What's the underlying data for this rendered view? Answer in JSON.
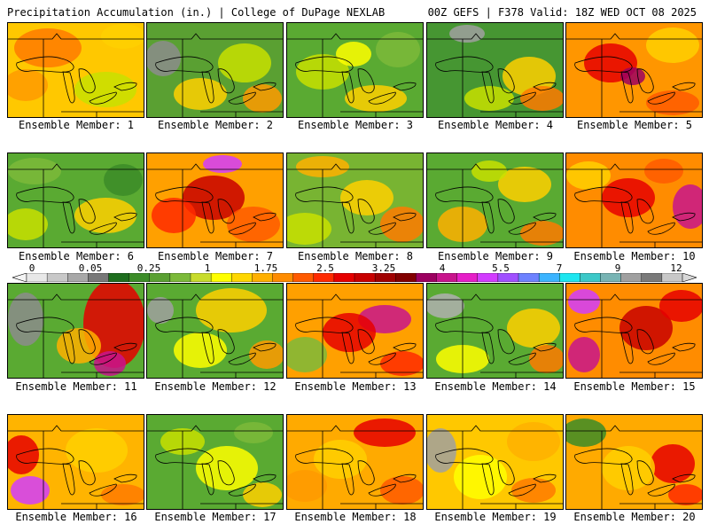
{
  "header": {
    "left": "Precipitation Accumulation (in.) | College of DuPage NEXLAB",
    "right": "00Z GEFS | F378 Valid: 18Z WED OCT 08 2025"
  },
  "colorbar": {
    "labels": [
      "0",
      "0.05",
      "0.25",
      "1",
      "1.75",
      "2.5",
      "3.25",
      "4",
      "5.5",
      "7",
      "9",
      "12"
    ],
    "colors": [
      "#e8e8e8",
      "#c8c8c8",
      "#a8a8a8",
      "#787878",
      "#1e6e1e",
      "#3c8c28",
      "#5aa032",
      "#7cba3a",
      "#c8dc2c",
      "#ffff00",
      "#ffd700",
      "#ffb000",
      "#ff8c00",
      "#ff5a00",
      "#ff2a00",
      "#e60000",
      "#c80000",
      "#a00000",
      "#820000",
      "#9c0060",
      "#c8148c",
      "#e61ec8",
      "#d23cff",
      "#a050ff",
      "#6e82ff",
      "#3cb4ff",
      "#1ee6f0",
      "#3cc8c8",
      "#78b4b4",
      "#a0a0a0",
      "#7a7a7a",
      "#c8c8c8"
    ]
  },
  "members": [
    {
      "label": "Ensemble Member: 1",
      "rgb": [
        255,
        200,
        0
      ],
      "blobs": [
        [
          45,
          28,
          38,
          22,
          "#ff7a00"
        ],
        [
          110,
          75,
          35,
          20,
          "#c8e000"
        ],
        [
          20,
          70,
          25,
          18,
          "#ff9a00"
        ],
        [
          130,
          15,
          25,
          14,
          "#ffd000"
        ]
      ]
    },
    {
      "label": "Ensemble Member: 2",
      "rgb": [
        90,
        160,
        50
      ],
      "blobs": [
        [
          18,
          40,
          20,
          20,
          "#8c8c8c"
        ],
        [
          110,
          45,
          30,
          22,
          "#c8e000"
        ],
        [
          60,
          80,
          30,
          18,
          "#ffd000"
        ],
        [
          130,
          85,
          22,
          16,
          "#ff9a00"
        ]
      ]
    },
    {
      "label": "Ensemble Member: 3",
      "rgb": [
        90,
        170,
        50
      ],
      "blobs": [
        [
          40,
          55,
          30,
          20,
          "#c8e000"
        ],
        [
          100,
          85,
          35,
          15,
          "#ffd000"
        ],
        [
          125,
          30,
          25,
          20,
          "#7cba3a"
        ],
        [
          75,
          35,
          20,
          14,
          "#ffff00"
        ]
      ]
    },
    {
      "label": "Ensemble Member: 4",
      "rgb": [
        70,
        150,
        50
      ],
      "blobs": [
        [
          45,
          12,
          20,
          10,
          "#a0a0a0"
        ],
        [
          115,
          60,
          30,
          22,
          "#ffd000"
        ],
        [
          130,
          85,
          25,
          14,
          "#ff7a00"
        ],
        [
          70,
          85,
          28,
          14,
          "#c8e000"
        ]
      ]
    },
    {
      "label": "Ensemble Member: 5",
      "rgb": [
        255,
        150,
        0
      ],
      "blobs": [
        [
          50,
          45,
          30,
          22,
          "#e60000"
        ],
        [
          75,
          60,
          14,
          10,
          "#9c0060"
        ],
        [
          120,
          25,
          30,
          20,
          "#ffd000"
        ],
        [
          120,
          90,
          30,
          14,
          "#ff5a00"
        ]
      ]
    },
    {
      "label": "Ensemble Member: 6",
      "rgb": [
        90,
        170,
        50
      ],
      "blobs": [
        [
          30,
          20,
          30,
          15,
          "#7cba3a"
        ],
        [
          110,
          70,
          35,
          20,
          "#ffd000"
        ],
        [
          20,
          80,
          25,
          18,
          "#c8e000"
        ],
        [
          130,
          30,
          22,
          18,
          "#3c8c28"
        ]
      ]
    },
    {
      "label": "Ensemble Member: 7",
      "rgb": [
        255,
        160,
        0
      ],
      "blobs": [
        [
          85,
          12,
          22,
          10,
          "#d23cff"
        ],
        [
          75,
          50,
          35,
          25,
          "#c80000"
        ],
        [
          30,
          70,
          25,
          20,
          "#ff2a00"
        ],
        [
          120,
          80,
          30,
          20,
          "#ff5a00"
        ]
      ]
    },
    {
      "label": "Ensemble Member: 8",
      "rgb": [
        120,
        180,
        50
      ],
      "blobs": [
        [
          40,
          15,
          30,
          12,
          "#ffb000"
        ],
        [
          90,
          50,
          30,
          20,
          "#ffd000"
        ],
        [
          130,
          80,
          25,
          20,
          "#ff7a00"
        ],
        [
          20,
          85,
          30,
          18,
          "#c8e000"
        ]
      ]
    },
    {
      "label": "Ensemble Member: 9",
      "rgb": [
        90,
        170,
        50
      ],
      "blobs": [
        [
          110,
          35,
          30,
          20,
          "#ffd000"
        ],
        [
          40,
          80,
          28,
          20,
          "#ffb000"
        ],
        [
          130,
          90,
          25,
          14,
          "#ff7a00"
        ],
        [
          70,
          20,
          20,
          12,
          "#c8e000"
        ]
      ]
    },
    {
      "label": "Ensemble Member: 10",
      "rgb": [
        255,
        140,
        0
      ],
      "blobs": [
        [
          140,
          60,
          20,
          25,
          "#c8148c"
        ],
        [
          70,
          50,
          30,
          22,
          "#e60000"
        ],
        [
          25,
          25,
          25,
          16,
          "#ffd000"
        ],
        [
          110,
          20,
          22,
          14,
          "#ff5a00"
        ]
      ]
    },
    {
      "label": "Ensemble Member: 11",
      "rgb": [
        90,
        170,
        50
      ],
      "blobs": [
        [
          20,
          40,
          20,
          30,
          "#8c8c8c"
        ],
        [
          120,
          45,
          35,
          50,
          "#e60000"
        ],
        [
          115,
          90,
          18,
          14,
          "#c8148c"
        ],
        [
          80,
          70,
          25,
          20,
          "#ffb000"
        ]
      ]
    },
    {
      "label": "Ensemble Member: 12",
      "rgb": [
        90,
        170,
        50
      ],
      "blobs": [
        [
          95,
          30,
          40,
          25,
          "#ffd000"
        ],
        [
          60,
          75,
          30,
          20,
          "#ffff00"
        ],
        [
          15,
          30,
          15,
          15,
          "#a0a0a0"
        ],
        [
          135,
          80,
          20,
          16,
          "#ff9a00"
        ]
      ]
    },
    {
      "label": "Ensemble Member: 13",
      "rgb": [
        255,
        160,
        0
      ],
      "blobs": [
        [
          110,
          40,
          30,
          16,
          "#c8148c"
        ],
        [
          70,
          55,
          30,
          22,
          "#e60000"
        ],
        [
          20,
          80,
          25,
          20,
          "#7cba3a"
        ],
        [
          130,
          90,
          25,
          14,
          "#ff2a00"
        ]
      ]
    },
    {
      "label": "Ensemble Member: 14",
      "rgb": [
        90,
        170,
        50
      ],
      "blobs": [
        [
          20,
          25,
          22,
          14,
          "#b0b0b0"
        ],
        [
          120,
          50,
          30,
          22,
          "#ffd000"
        ],
        [
          40,
          85,
          30,
          16,
          "#ffff00"
        ],
        [
          135,
          85,
          20,
          16,
          "#ff7a00"
        ]
      ]
    },
    {
      "label": "Ensemble Member: 15",
      "rgb": [
        255,
        140,
        0
      ],
      "blobs": [
        [
          20,
          80,
          18,
          20,
          "#c8148c"
        ],
        [
          90,
          50,
          30,
          25,
          "#c80000"
        ],
        [
          130,
          25,
          25,
          18,
          "#e60000"
        ],
        [
          20,
          20,
          18,
          14,
          "#d23cff"
        ]
      ]
    },
    {
      "label": "Ensemble Member: 16",
      "rgb": [
        255,
        180,
        0
      ],
      "blobs": [
        [
          25,
          85,
          22,
          16,
          "#d23cff"
        ],
        [
          15,
          45,
          20,
          22,
          "#e60000"
        ],
        [
          100,
          40,
          35,
          25,
          "#ffd000"
        ],
        [
          130,
          90,
          25,
          12,
          "#ff7a00"
        ]
      ]
    },
    {
      "label": "Ensemble Member: 17",
      "rgb": [
        90,
        170,
        50
      ],
      "blobs": [
        [
          90,
          60,
          35,
          25,
          "#ffff00"
        ],
        [
          40,
          30,
          25,
          15,
          "#c8e000"
        ],
        [
          120,
          20,
          22,
          12,
          "#7cba3a"
        ],
        [
          130,
          90,
          22,
          14,
          "#ffd000"
        ]
      ]
    },
    {
      "label": "Ensemble Member: 18",
      "rgb": [
        255,
        170,
        0
      ],
      "blobs": [
        [
          110,
          20,
          35,
          16,
          "#e60000"
        ],
        [
          60,
          50,
          30,
          22,
          "#ffd000"
        ],
        [
          20,
          80,
          25,
          18,
          "#ff9a00"
        ],
        [
          130,
          85,
          25,
          16,
          "#ff5a00"
        ]
      ]
    },
    {
      "label": "Ensemble Member: 19",
      "rgb": [
        255,
        200,
        0
      ],
      "blobs": [
        [
          15,
          40,
          18,
          25,
          "#a0a0a0"
        ],
        [
          120,
          30,
          30,
          22,
          "#ffb000"
        ],
        [
          60,
          70,
          30,
          25,
          "#ffff00"
        ],
        [
          120,
          85,
          25,
          14,
          "#ff7a00"
        ]
      ]
    },
    {
      "label": "Ensemble Member: 20",
      "rgb": [
        255,
        170,
        0
      ],
      "blobs": [
        [
          20,
          20,
          25,
          16,
          "#3c8c28"
        ],
        [
          120,
          55,
          25,
          22,
          "#e60000"
        ],
        [
          70,
          60,
          30,
          25,
          "#ffd000"
        ],
        [
          135,
          90,
          20,
          12,
          "#ff2a00"
        ]
      ]
    }
  ]
}
